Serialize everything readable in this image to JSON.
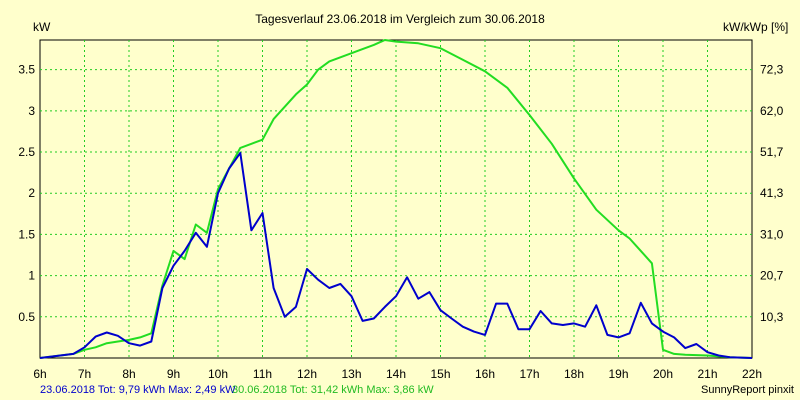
{
  "chart_data": {
    "type": "line",
    "title": "Tagesverlauf 23.06.2018 im Vergleich zum 30.06.2018",
    "ylabel": "kW",
    "ylabel_right": "kW/kWp [%]",
    "xlim": [
      6,
      22
    ],
    "ylim": [
      0,
      3.86
    ],
    "x_ticks": [
      "6h",
      "7h",
      "8h",
      "9h",
      "10h",
      "11h",
      "12h",
      "13h",
      "14h",
      "15h",
      "16h",
      "17h",
      "18h",
      "19h",
      "20h",
      "21h",
      "22h"
    ],
    "y_ticks": [
      {
        "value": 0.5,
        "label": "0.5"
      },
      {
        "value": 1,
        "label": "1"
      },
      {
        "value": 1.5,
        "label": "1.5"
      },
      {
        "value": 2,
        "label": "2"
      },
      {
        "value": 2.5,
        "label": "2.5"
      },
      {
        "value": 3,
        "label": "3"
      },
      {
        "value": 3.5,
        "label": "3.5"
      }
    ],
    "y2_ticks": [
      {
        "value": 0.5,
        "label": "10,3"
      },
      {
        "value": 1,
        "label": "20,7"
      },
      {
        "value": 1.5,
        "label": "31,0"
      },
      {
        "value": 2,
        "label": "41,3"
      },
      {
        "value": 2.5,
        "label": "51,7"
      },
      {
        "value": 3,
        "label": "62,0"
      },
      {
        "value": 3.5,
        "label": "72,3"
      }
    ],
    "grid": true,
    "series": [
      {
        "name": "23.06.2018",
        "color": "#0000cc",
        "points": [
          [
            6.0,
            0.0
          ],
          [
            6.75,
            0.05
          ],
          [
            7.0,
            0.13
          ],
          [
            7.25,
            0.26
          ],
          [
            7.5,
            0.31
          ],
          [
            7.75,
            0.27
          ],
          [
            8.0,
            0.18
          ],
          [
            8.25,
            0.15
          ],
          [
            8.5,
            0.2
          ],
          [
            8.75,
            0.85
          ],
          [
            9.0,
            1.12
          ],
          [
            9.25,
            1.3
          ],
          [
            9.5,
            1.52
          ],
          [
            9.75,
            1.35
          ],
          [
            10.0,
            2.0
          ],
          [
            10.25,
            2.3
          ],
          [
            10.5,
            2.49
          ],
          [
            10.75,
            1.55
          ],
          [
            11.0,
            1.76
          ],
          [
            11.25,
            0.85
          ],
          [
            11.5,
            0.5
          ],
          [
            11.75,
            0.62
          ],
          [
            12.0,
            1.08
          ],
          [
            12.25,
            0.95
          ],
          [
            12.5,
            0.85
          ],
          [
            12.75,
            0.9
          ],
          [
            13.0,
            0.75
          ],
          [
            13.25,
            0.45
          ],
          [
            13.5,
            0.48
          ],
          [
            13.75,
            0.62
          ],
          [
            14.0,
            0.75
          ],
          [
            14.25,
            0.98
          ],
          [
            14.5,
            0.72
          ],
          [
            14.75,
            0.8
          ],
          [
            15.0,
            0.58
          ],
          [
            15.25,
            0.48
          ],
          [
            15.5,
            0.38
          ],
          [
            15.75,
            0.32
          ],
          [
            16.0,
            0.28
          ],
          [
            16.25,
            0.66
          ],
          [
            16.5,
            0.66
          ],
          [
            16.75,
            0.35
          ],
          [
            17.0,
            0.35
          ],
          [
            17.25,
            0.57
          ],
          [
            17.5,
            0.42
          ],
          [
            17.75,
            0.4
          ],
          [
            18.0,
            0.42
          ],
          [
            18.25,
            0.38
          ],
          [
            18.5,
            0.64
          ],
          [
            18.75,
            0.28
          ],
          [
            19.0,
            0.25
          ],
          [
            19.25,
            0.3
          ],
          [
            19.5,
            0.67
          ],
          [
            19.75,
            0.42
          ],
          [
            20.0,
            0.32
          ],
          [
            20.25,
            0.25
          ],
          [
            20.5,
            0.12
          ],
          [
            20.75,
            0.17
          ],
          [
            21.0,
            0.07
          ],
          [
            21.25,
            0.03
          ],
          [
            21.5,
            0.01
          ],
          [
            22.0,
            0.0
          ]
        ]
      },
      {
        "name": "30.06.2018",
        "color": "#22dd22",
        "points": [
          [
            6.0,
            0.0
          ],
          [
            6.75,
            0.05
          ],
          [
            7.0,
            0.1
          ],
          [
            7.25,
            0.13
          ],
          [
            7.5,
            0.18
          ],
          [
            7.75,
            0.2
          ],
          [
            8.0,
            0.22
          ],
          [
            8.25,
            0.25
          ],
          [
            8.5,
            0.3
          ],
          [
            8.75,
            0.88
          ],
          [
            9.0,
            1.3
          ],
          [
            9.25,
            1.2
          ],
          [
            9.5,
            1.62
          ],
          [
            9.75,
            1.52
          ],
          [
            10.0,
            2.05
          ],
          [
            10.25,
            2.3
          ],
          [
            10.5,
            2.55
          ],
          [
            10.75,
            2.6
          ],
          [
            11.0,
            2.65
          ],
          [
            11.25,
            2.9
          ],
          [
            11.5,
            3.05
          ],
          [
            11.75,
            3.2
          ],
          [
            12.0,
            3.32
          ],
          [
            12.25,
            3.5
          ],
          [
            12.5,
            3.6
          ],
          [
            12.75,
            3.65
          ],
          [
            13.0,
            3.7
          ],
          [
            13.25,
            3.75
          ],
          [
            13.5,
            3.8
          ],
          [
            13.75,
            3.86
          ],
          [
            14.0,
            3.84
          ],
          [
            14.5,
            3.82
          ],
          [
            15.0,
            3.76
          ],
          [
            15.5,
            3.62
          ],
          [
            16.0,
            3.48
          ],
          [
            16.5,
            3.28
          ],
          [
            17.0,
            2.95
          ],
          [
            17.5,
            2.6
          ],
          [
            18.0,
            2.18
          ],
          [
            18.5,
            1.8
          ],
          [
            19.0,
            1.55
          ],
          [
            19.25,
            1.45
          ],
          [
            19.5,
            1.3
          ],
          [
            19.75,
            1.15
          ],
          [
            20.0,
            0.1
          ],
          [
            20.25,
            0.05
          ],
          [
            20.5,
            0.04
          ],
          [
            21.0,
            0.03
          ],
          [
            21.5,
            0.01
          ],
          [
            22.0,
            0.0
          ]
        ]
      }
    ]
  },
  "footer": {
    "series1_text": "23.06.2018 Tot: 9,79 kWh Max: 2,49 kW",
    "series2_text": "30.06.2018 Tot: 31,42 kWh Max: 3,86 kW",
    "brand": "SunnyReport pinxit"
  }
}
